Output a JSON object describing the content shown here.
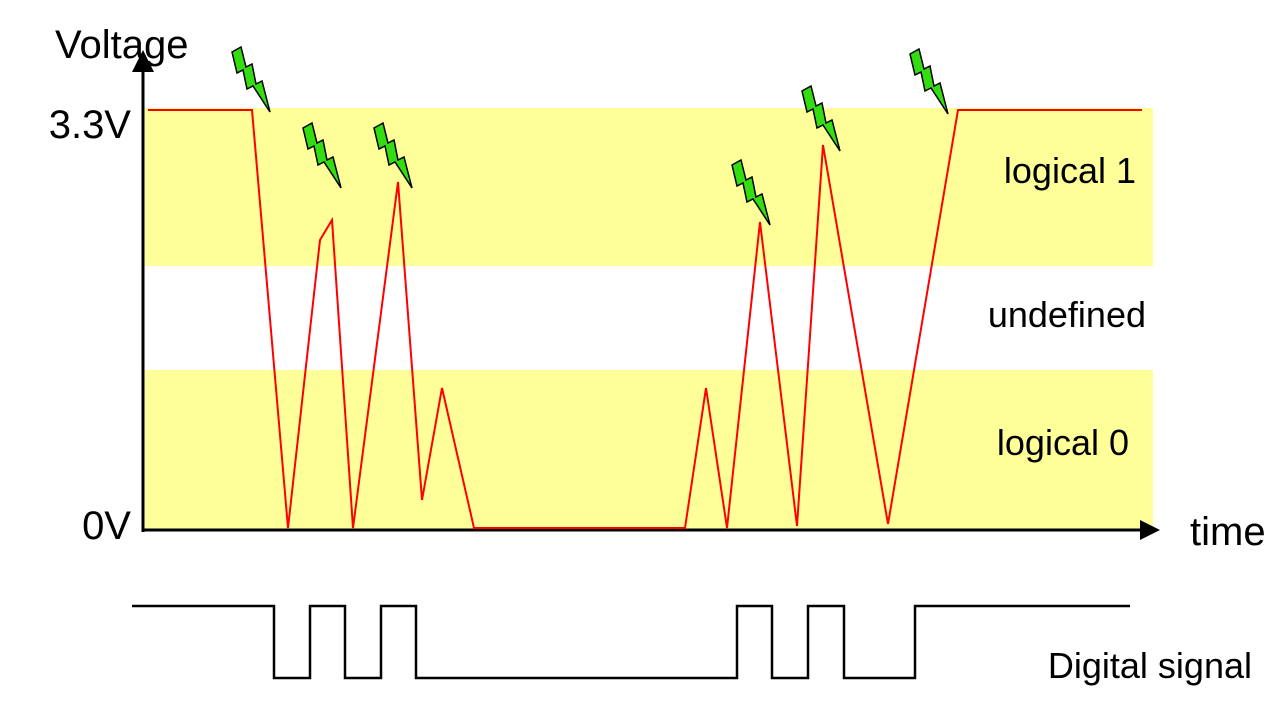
{
  "axes": {
    "y_label": "Voltage",
    "x_label": "time",
    "y_high_label": "3.3V",
    "y_low_label": "0V"
  },
  "bands": {
    "logical_1": "logical 1",
    "undefined": "undefined",
    "logical_0": "logical 0"
  },
  "digital_label": "Digital signal",
  "colors": {
    "band": "#ffff99",
    "analog_line": "#ff0000",
    "bolt_fill": "#33dd11",
    "bolt_stroke": "#000000",
    "axis": "#000000"
  },
  "icons": [
    "lightning-bolt-icon"
  ],
  "bolt_count": 6
}
